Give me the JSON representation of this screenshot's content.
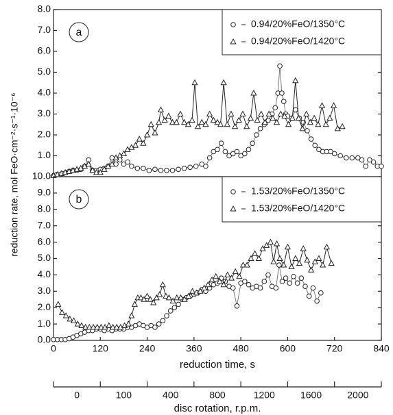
{
  "chart_data": [
    {
      "type": "line",
      "panel_label": "a",
      "legend": "upper right",
      "xlim": [
        0,
        840
      ],
      "ylim": [
        0,
        8
      ],
      "yticks": [
        {
          "value": 1,
          "label": "1.0"
        },
        {
          "value": 2,
          "label": "2.0"
        },
        {
          "value": 3,
          "label": "3.0"
        },
        {
          "value": 4,
          "label": "4.0"
        },
        {
          "value": 5,
          "label": "5.0"
        },
        {
          "value": 6,
          "label": "6.0"
        },
        {
          "value": 7,
          "label": "7.0"
        },
        {
          "value": 8,
          "label": "8.0"
        }
      ],
      "series": [
        {
          "name": "0.94/20%FeO/1350°C",
          "marker": "circle",
          "color": "#777777",
          "x": [
            0,
            8,
            16,
            24,
            32,
            40,
            50,
            60,
            70,
            80,
            90,
            100,
            110,
            120,
            130,
            140,
            150,
            160,
            170,
            180,
            190,
            200,
            215,
            230,
            245,
            260,
            275,
            290,
            305,
            320,
            335,
            350,
            365,
            380,
            390,
            400,
            410,
            420,
            430,
            440,
            450,
            460,
            470,
            480,
            490,
            500,
            510,
            520,
            530,
            540,
            550,
            560,
            568,
            575,
            580,
            585,
            590,
            595,
            600,
            610,
            620,
            630,
            640,
            650,
            660,
            670,
            680,
            690,
            700,
            710,
            720,
            735,
            750,
            765,
            780,
            790,
            800,
            810,
            820,
            830,
            840
          ],
          "values": [
            0.05,
            0.1,
            0.1,
            0.15,
            0.2,
            0.25,
            0.3,
            0.3,
            0.35,
            0.5,
            0.8,
            0.3,
            0.3,
            0.35,
            0.4,
            0.5,
            0.9,
            0.6,
            0.8,
            0.6,
            0.7,
            0.5,
            0.4,
            0.4,
            0.3,
            0.35,
            0.3,
            0.3,
            0.3,
            0.35,
            0.4,
            0.45,
            0.5,
            0.6,
            0.5,
            0.9,
            1.2,
            1.3,
            1.6,
            1.2,
            1.0,
            1.1,
            1.2,
            1.0,
            1.1,
            1.3,
            1.6,
            2.0,
            2.3,
            2.5,
            2.7,
            3.0,
            3.3,
            4.0,
            5.3,
            4.0,
            3.6,
            3.0,
            2.9,
            2.8,
            3.2,
            2.8,
            2.6,
            2.2,
            1.8,
            1.5,
            1.3,
            1.2,
            1.2,
            1.2,
            1.1,
            1.0,
            0.9,
            0.9,
            0.9,
            0.8,
            0.5,
            0.8,
            0.7,
            0.5,
            0.5
          ]
        },
        {
          "name": "0.94/20%FeO/1420°C",
          "marker": "triangle",
          "color": "#222222",
          "x": [
            0,
            10,
            20,
            30,
            40,
            50,
            60,
            70,
            80,
            90,
            100,
            110,
            120,
            130,
            140,
            150,
            160,
            170,
            180,
            190,
            200,
            210,
            220,
            230,
            240,
            250,
            260,
            270,
            275,
            285,
            295,
            305,
            315,
            325,
            335,
            345,
            355,
            362,
            370,
            380,
            390,
            400,
            410,
            420,
            428,
            436,
            445,
            455,
            465,
            475,
            485,
            495,
            505,
            513,
            522,
            532,
            542,
            552,
            562,
            572,
            582,
            592,
            602,
            612,
            620,
            628,
            638,
            648,
            658,
            668,
            678,
            688,
            698,
            708,
            718,
            728,
            740
          ],
          "values": [
            0.05,
            0.1,
            0.15,
            0.2,
            0.25,
            0.3,
            0.35,
            0.4,
            0.5,
            0.6,
            0.3,
            0.2,
            0.2,
            0.35,
            0.5,
            0.6,
            0.9,
            1.0,
            1.1,
            1.3,
            1.4,
            1.5,
            1.8,
            1.6,
            2.0,
            2.5,
            2.1,
            2.6,
            3.2,
            2.7,
            2.9,
            2.6,
            2.6,
            3.0,
            2.6,
            2.5,
            2.7,
            4.5,
            2.4,
            2.6,
            2.5,
            3.0,
            2.7,
            2.6,
            2.5,
            4.5,
            2.5,
            3.0,
            2.4,
            2.7,
            3.0,
            2.4,
            2.8,
            4.0,
            2.7,
            3.0,
            2.6,
            3.0,
            2.8,
            2.6,
            3.0,
            2.9,
            2.5,
            2.8,
            4.6,
            2.8,
            2.3,
            3.0,
            2.6,
            2.8,
            2.5,
            3.4,
            2.5,
            2.8,
            3.4,
            2.3,
            2.4
          ]
        }
      ]
    },
    {
      "type": "line",
      "panel_label": "b",
      "legend": "upper right",
      "xlim": [
        0,
        840
      ],
      "ylim": [
        0,
        10
      ],
      "x_label": "reduction time, s",
      "y_label": "reduction rate, mol FeO·cm⁻²·s⁻¹·10⁻⁶",
      "xticks": [
        0,
        120,
        240,
        360,
        480,
        600,
        720,
        840
      ],
      "yticks": [
        {
          "value": 0,
          "label": "0.0"
        },
        {
          "value": 1,
          "label": "1.0"
        },
        {
          "value": 2,
          "label": "2.0"
        },
        {
          "value": 3,
          "label": "3.0"
        },
        {
          "value": 4,
          "label": "4.0"
        },
        {
          "value": 5,
          "label": "5.0"
        },
        {
          "value": 6,
          "label": "6.0"
        },
        {
          "value": 7,
          "label": "7.0"
        },
        {
          "value": 8,
          "label": "8.0"
        },
        {
          "value": 9,
          "label": "9.0"
        },
        {
          "value": 10,
          "label": "10.0"
        }
      ],
      "series": [
        {
          "name": "1.53/20%FeO/1350°C",
          "marker": "circle",
          "color": "#777777",
          "x": [
            0,
            10,
            20,
            30,
            40,
            50,
            60,
            70,
            80,
            90,
            100,
            110,
            120,
            130,
            140,
            150,
            160,
            170,
            180,
            190,
            200,
            210,
            220,
            230,
            240,
            250,
            260,
            270,
            280,
            290,
            300,
            310,
            320,
            330,
            340,
            350,
            360,
            370,
            380,
            390,
            400,
            410,
            420,
            430,
            440,
            450,
            460,
            470,
            480,
            490,
            500,
            510,
            520,
            530,
            540,
            550,
            560,
            570,
            578,
            586,
            595,
            605,
            615,
            625,
            635,
            645,
            655,
            665,
            675,
            685
          ],
          "values": [
            0.05,
            0.05,
            0.05,
            0.05,
            0.1,
            0.2,
            0.3,
            0.4,
            0.5,
            0.6,
            0.6,
            0.7,
            0.7,
            0.6,
            0.7,
            0.6,
            0.7,
            0.7,
            0.7,
            0.8,
            0.8,
            0.9,
            1.0,
            0.9,
            0.8,
            0.9,
            0.8,
            1.0,
            1.2,
            1.5,
            1.8,
            2.0,
            2.2,
            2.5,
            2.6,
            2.7,
            2.8,
            2.9,
            3.1,
            3.0,
            3.2,
            3.4,
            3.5,
            3.8,
            3.6,
            3.3,
            3.2,
            2.1,
            3.5,
            3.6,
            3.4,
            3.2,
            3.3,
            3.2,
            3.6,
            4.0,
            3.3,
            3.2,
            4.6,
            3.6,
            3.8,
            3.5,
            3.9,
            3.5,
            3.8,
            3.3,
            2.7,
            3.2,
            2.4,
            2.9
          ]
        },
        {
          "name": "1.53/20%FeO/1420°C",
          "marker": "triangle",
          "color": "#222222",
          "x": [
            12,
            22,
            32,
            42,
            52,
            62,
            72,
            82,
            92,
            102,
            112,
            122,
            132,
            142,
            152,
            162,
            172,
            182,
            192,
            200,
            208,
            216,
            224,
            232,
            240,
            248,
            256,
            264,
            272,
            280,
            288,
            296,
            306,
            316,
            326,
            336,
            346,
            356,
            366,
            376,
            386,
            396,
            406,
            416,
            426,
            436,
            446,
            456,
            466,
            476,
            486,
            496,
            506,
            516,
            526,
            536,
            546,
            556,
            564,
            572,
            580,
            590,
            600,
            610,
            620,
            630,
            640,
            650,
            660,
            670,
            680,
            690,
            700,
            712
          ],
          "values": [
            2.2,
            1.7,
            1.5,
            1.3,
            1.2,
            1.0,
            0.9,
            0.8,
            0.8,
            0.8,
            0.8,
            0.8,
            0.8,
            0.9,
            0.8,
            0.8,
            0.8,
            0.9,
            1.0,
            1.5,
            2.2,
            2.6,
            2.6,
            2.5,
            2.7,
            2.5,
            2.3,
            2.6,
            2.8,
            3.4,
            2.7,
            2.6,
            2.4,
            2.6,
            2.6,
            2.5,
            2.7,
            3.0,
            2.9,
            3.0,
            3.2,
            3.4,
            3.7,
            3.9,
            3.6,
            3.4,
            4.0,
            3.8,
            4.2,
            3.9,
            4.6,
            4.6,
            5.0,
            5.3,
            5.0,
            5.6,
            5.8,
            6.0,
            4.8,
            5.9,
            5.0,
            4.6,
            5.7,
            4.5,
            5.0,
            4.7,
            5.6,
            4.9,
            4.3,
            4.8,
            5.0,
            4.6,
            5.7,
            4.7
          ]
        }
      ]
    }
  ],
  "secondary_axis": {
    "label": "disc rotation, r.p.m.",
    "categories": [
      "0",
      "100",
      "400",
      "800",
      "1200",
      "1600",
      "2000"
    ]
  }
}
